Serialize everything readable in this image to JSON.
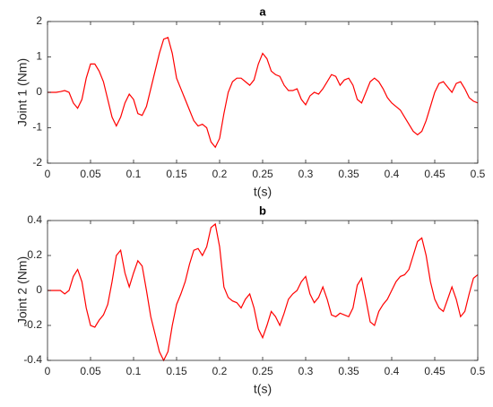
{
  "chart_data": [
    {
      "type": "line",
      "title": "a",
      "xlabel": "t(s)",
      "ylabel": "Joint 1 (Nm)",
      "x": [
        0,
        0.005,
        0.01,
        0.015,
        0.02,
        0.025,
        0.03,
        0.035,
        0.04,
        0.045,
        0.05,
        0.055,
        0.06,
        0.065,
        0.07,
        0.075,
        0.08,
        0.085,
        0.09,
        0.095,
        0.1,
        0.105,
        0.11,
        0.115,
        0.12,
        0.125,
        0.13,
        0.135,
        0.14,
        0.145,
        0.15,
        0.155,
        0.16,
        0.165,
        0.17,
        0.175,
        0.18,
        0.185,
        0.19,
        0.195,
        0.2,
        0.205,
        0.21,
        0.215,
        0.22,
        0.225,
        0.23,
        0.235,
        0.24,
        0.245,
        0.25,
        0.255,
        0.26,
        0.265,
        0.27,
        0.275,
        0.28,
        0.285,
        0.29,
        0.295,
        0.3,
        0.305,
        0.31,
        0.315,
        0.32,
        0.325,
        0.33,
        0.335,
        0.34,
        0.345,
        0.35,
        0.355,
        0.36,
        0.365,
        0.37,
        0.375,
        0.38,
        0.385,
        0.39,
        0.395,
        0.4,
        0.405,
        0.41,
        0.415,
        0.42,
        0.425,
        0.43,
        0.435,
        0.44,
        0.445,
        0.45,
        0.455,
        0.46,
        0.465,
        0.47,
        0.475,
        0.48,
        0.485,
        0.49,
        0.495,
        0.5
      ],
      "series": [
        {
          "color": "#ff0000",
          "values": [
            0,
            0,
            0,
            0.02,
            0.05,
            0,
            -0.3,
            -0.45,
            -0.2,
            0.4,
            0.8,
            0.8,
            0.6,
            0.3,
            -0.2,
            -0.7,
            -0.95,
            -0.7,
            -0.3,
            -0.05,
            -0.2,
            -0.6,
            -0.65,
            -0.4,
            0.1,
            0.6,
            1.1,
            1.5,
            1.55,
            1.1,
            0.4,
            0.1,
            -0.2,
            -0.5,
            -0.8,
            -0.95,
            -0.9,
            -1,
            -1.4,
            -1.55,
            -1.3,
            -0.6,
            0,
            0.3,
            0.4,
            0.4,
            0.3,
            0.2,
            0.35,
            0.8,
            1.1,
            0.95,
            0.6,
            0.5,
            0.45,
            0.2,
            0.05,
            0.05,
            0.1,
            -0.2,
            -0.35,
            -0.1,
            0,
            -0.05,
            0.1,
            0.3,
            0.5,
            0.45,
            0.2,
            0.35,
            0.4,
            0.2,
            -0.2,
            -0.3,
            0,
            0.3,
            0.4,
            0.3,
            0.1,
            -0.15,
            -0.3,
            -0.4,
            -0.5,
            -0.7,
            -0.9,
            -1.1,
            -1.2,
            -1.1,
            -0.8,
            -0.4,
            0,
            0.25,
            0.3,
            0.15,
            0,
            0.25,
            0.3,
            0.1,
            -0.15,
            -0.25,
            -0.3
          ]
        }
      ],
      "xlim": [
        0,
        0.5
      ],
      "xticks": [
        0,
        0.05,
        0.1,
        0.15,
        0.2,
        0.25,
        0.3,
        0.35,
        0.4,
        0.45,
        0.5
      ],
      "ylim": [
        -2,
        2
      ],
      "yticks": [
        -2,
        -1,
        0,
        1,
        2
      ]
    },
    {
      "type": "line",
      "title": "b",
      "xlabel": "t(s)",
      "ylabel": "Joint 2 (Nm)",
      "x": [
        0,
        0.005,
        0.01,
        0.015,
        0.02,
        0.025,
        0.03,
        0.035,
        0.04,
        0.045,
        0.05,
        0.055,
        0.06,
        0.065,
        0.07,
        0.075,
        0.08,
        0.085,
        0.09,
        0.095,
        0.1,
        0.105,
        0.11,
        0.115,
        0.12,
        0.125,
        0.13,
        0.135,
        0.14,
        0.145,
        0.15,
        0.155,
        0.16,
        0.165,
        0.17,
        0.175,
        0.18,
        0.185,
        0.19,
        0.195,
        0.2,
        0.205,
        0.21,
        0.215,
        0.22,
        0.225,
        0.23,
        0.235,
        0.24,
        0.245,
        0.25,
        0.255,
        0.26,
        0.265,
        0.27,
        0.275,
        0.28,
        0.285,
        0.29,
        0.295,
        0.3,
        0.305,
        0.31,
        0.315,
        0.32,
        0.325,
        0.33,
        0.335,
        0.34,
        0.345,
        0.35,
        0.355,
        0.36,
        0.365,
        0.37,
        0.375,
        0.38,
        0.385,
        0.39,
        0.395,
        0.4,
        0.405,
        0.41,
        0.415,
        0.42,
        0.425,
        0.43,
        0.435,
        0.44,
        0.445,
        0.45,
        0.455,
        0.46,
        0.465,
        0.47,
        0.475,
        0.48,
        0.485,
        0.49,
        0.495,
        0.5
      ],
      "series": [
        {
          "color": "#ff0000",
          "values": [
            0,
            0,
            0,
            0,
            -0.02,
            0,
            0.08,
            0.12,
            0.05,
            -0.1,
            -0.2,
            -0.21,
            -0.17,
            -0.14,
            -0.08,
            0.05,
            0.2,
            0.23,
            0.1,
            0.02,
            0.1,
            0.17,
            0.14,
            0,
            -0.15,
            -0.25,
            -0.35,
            -0.4,
            -0.35,
            -0.2,
            -0.08,
            -0.02,
            0.05,
            0.15,
            0.23,
            0.24,
            0.2,
            0.25,
            0.36,
            0.38,
            0.25,
            0.02,
            -0.04,
            -0.06,
            -0.07,
            -0.1,
            -0.05,
            -0.02,
            -0.1,
            -0.22,
            -0.27,
            -0.2,
            -0.12,
            -0.15,
            -0.2,
            -0.13,
            -0.05,
            -0.02,
            0,
            0.05,
            0.08,
            -0.02,
            -0.07,
            -0.04,
            0.02,
            -0.05,
            -0.14,
            -0.15,
            -0.13,
            -0.14,
            -0.15,
            -0.1,
            0.03,
            0.07,
            -0.05,
            -0.18,
            -0.2,
            -0.12,
            -0.08,
            -0.05,
            0,
            0.05,
            0.08,
            0.09,
            0.12,
            0.2,
            0.28,
            0.3,
            0.2,
            0.05,
            -0.05,
            -0.1,
            -0.12,
            -0.05,
            0.02,
            -0.05,
            -0.15,
            -0.12,
            -0.02,
            0.07,
            0.09
          ]
        }
      ],
      "xlim": [
        0,
        0.5
      ],
      "xticks": [
        0,
        0.05,
        0.1,
        0.15,
        0.2,
        0.25,
        0.3,
        0.35,
        0.4,
        0.45,
        0.5
      ],
      "ylim": [
        -0.4,
        0.4
      ],
      "yticks": [
        -0.4,
        -0.2,
        0,
        0.2,
        0.4
      ]
    }
  ]
}
